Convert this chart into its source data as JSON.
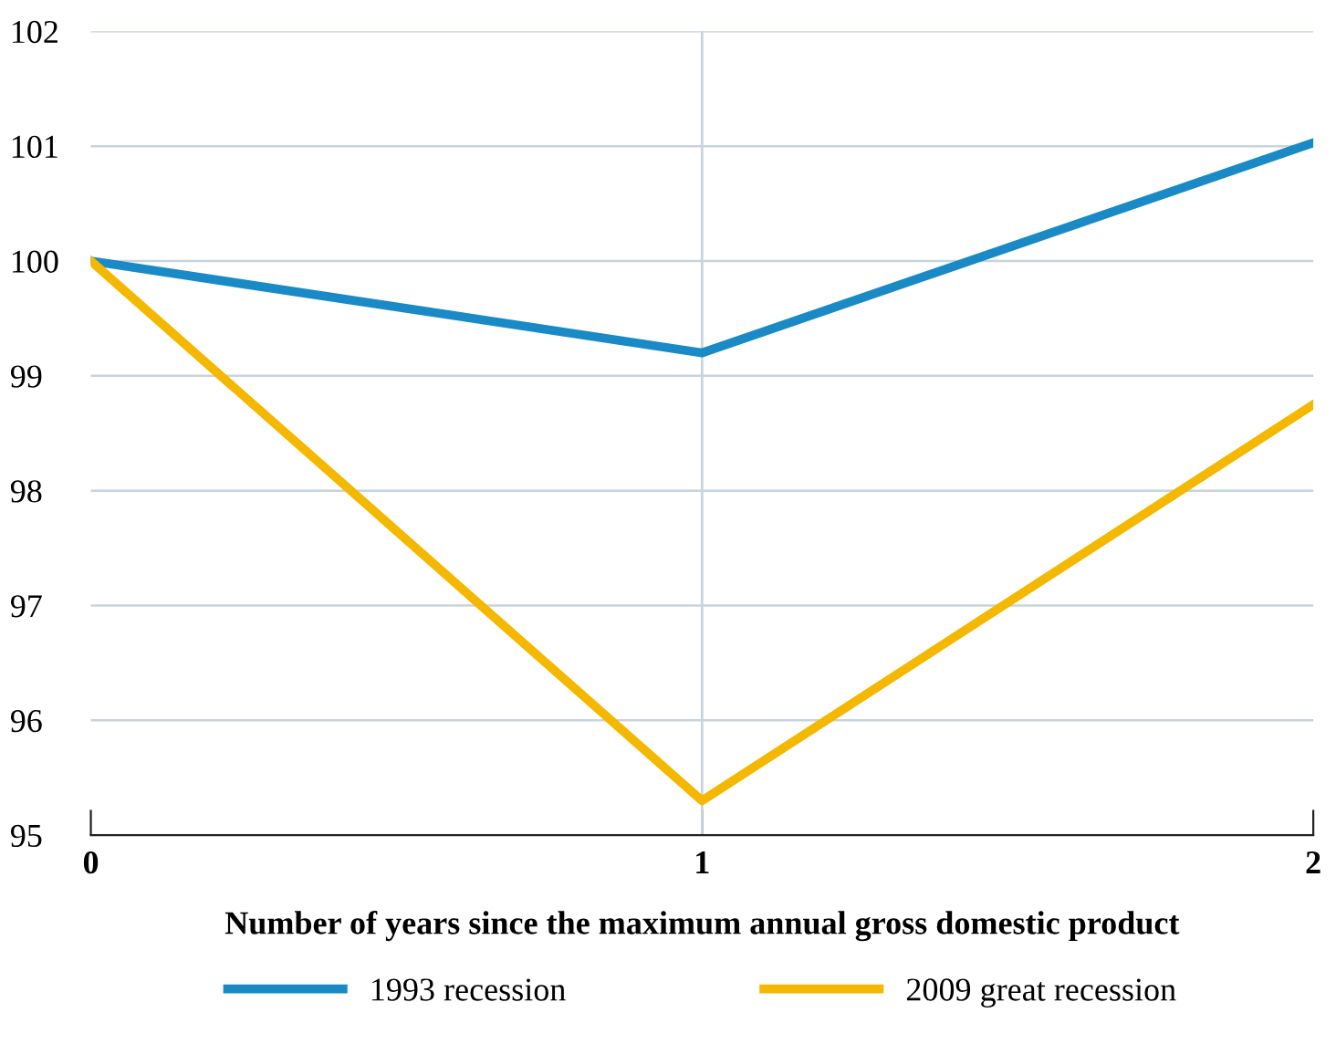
{
  "chart_data": {
    "type": "line",
    "xlabel": "Number of years since the maximum annual gross domestic product",
    "x": [
      0,
      1,
      2
    ],
    "series": [
      {
        "name": "1993 recession",
        "color": "#1a8ac6",
        "values": [
          100,
          99.2,
          101.03
        ]
      },
      {
        "name": "2009 great recession",
        "color": "#f5b800",
        "values": [
          100,
          95.3,
          98.75
        ]
      }
    ],
    "xlim": [
      0,
      2
    ],
    "xticks": [
      0,
      1,
      2
    ],
    "ylim": [
      95,
      102
    ],
    "yticks": [
      95,
      96,
      97,
      98,
      99,
      100,
      101,
      102
    ],
    "grid": "y",
    "legend": "bottom",
    "marker": "none",
    "line_style": "solid",
    "ref_lines": [
      {
        "axis": "x",
        "value": 1,
        "label": null,
        "color": "#c8d3dc"
      }
    ]
  }
}
